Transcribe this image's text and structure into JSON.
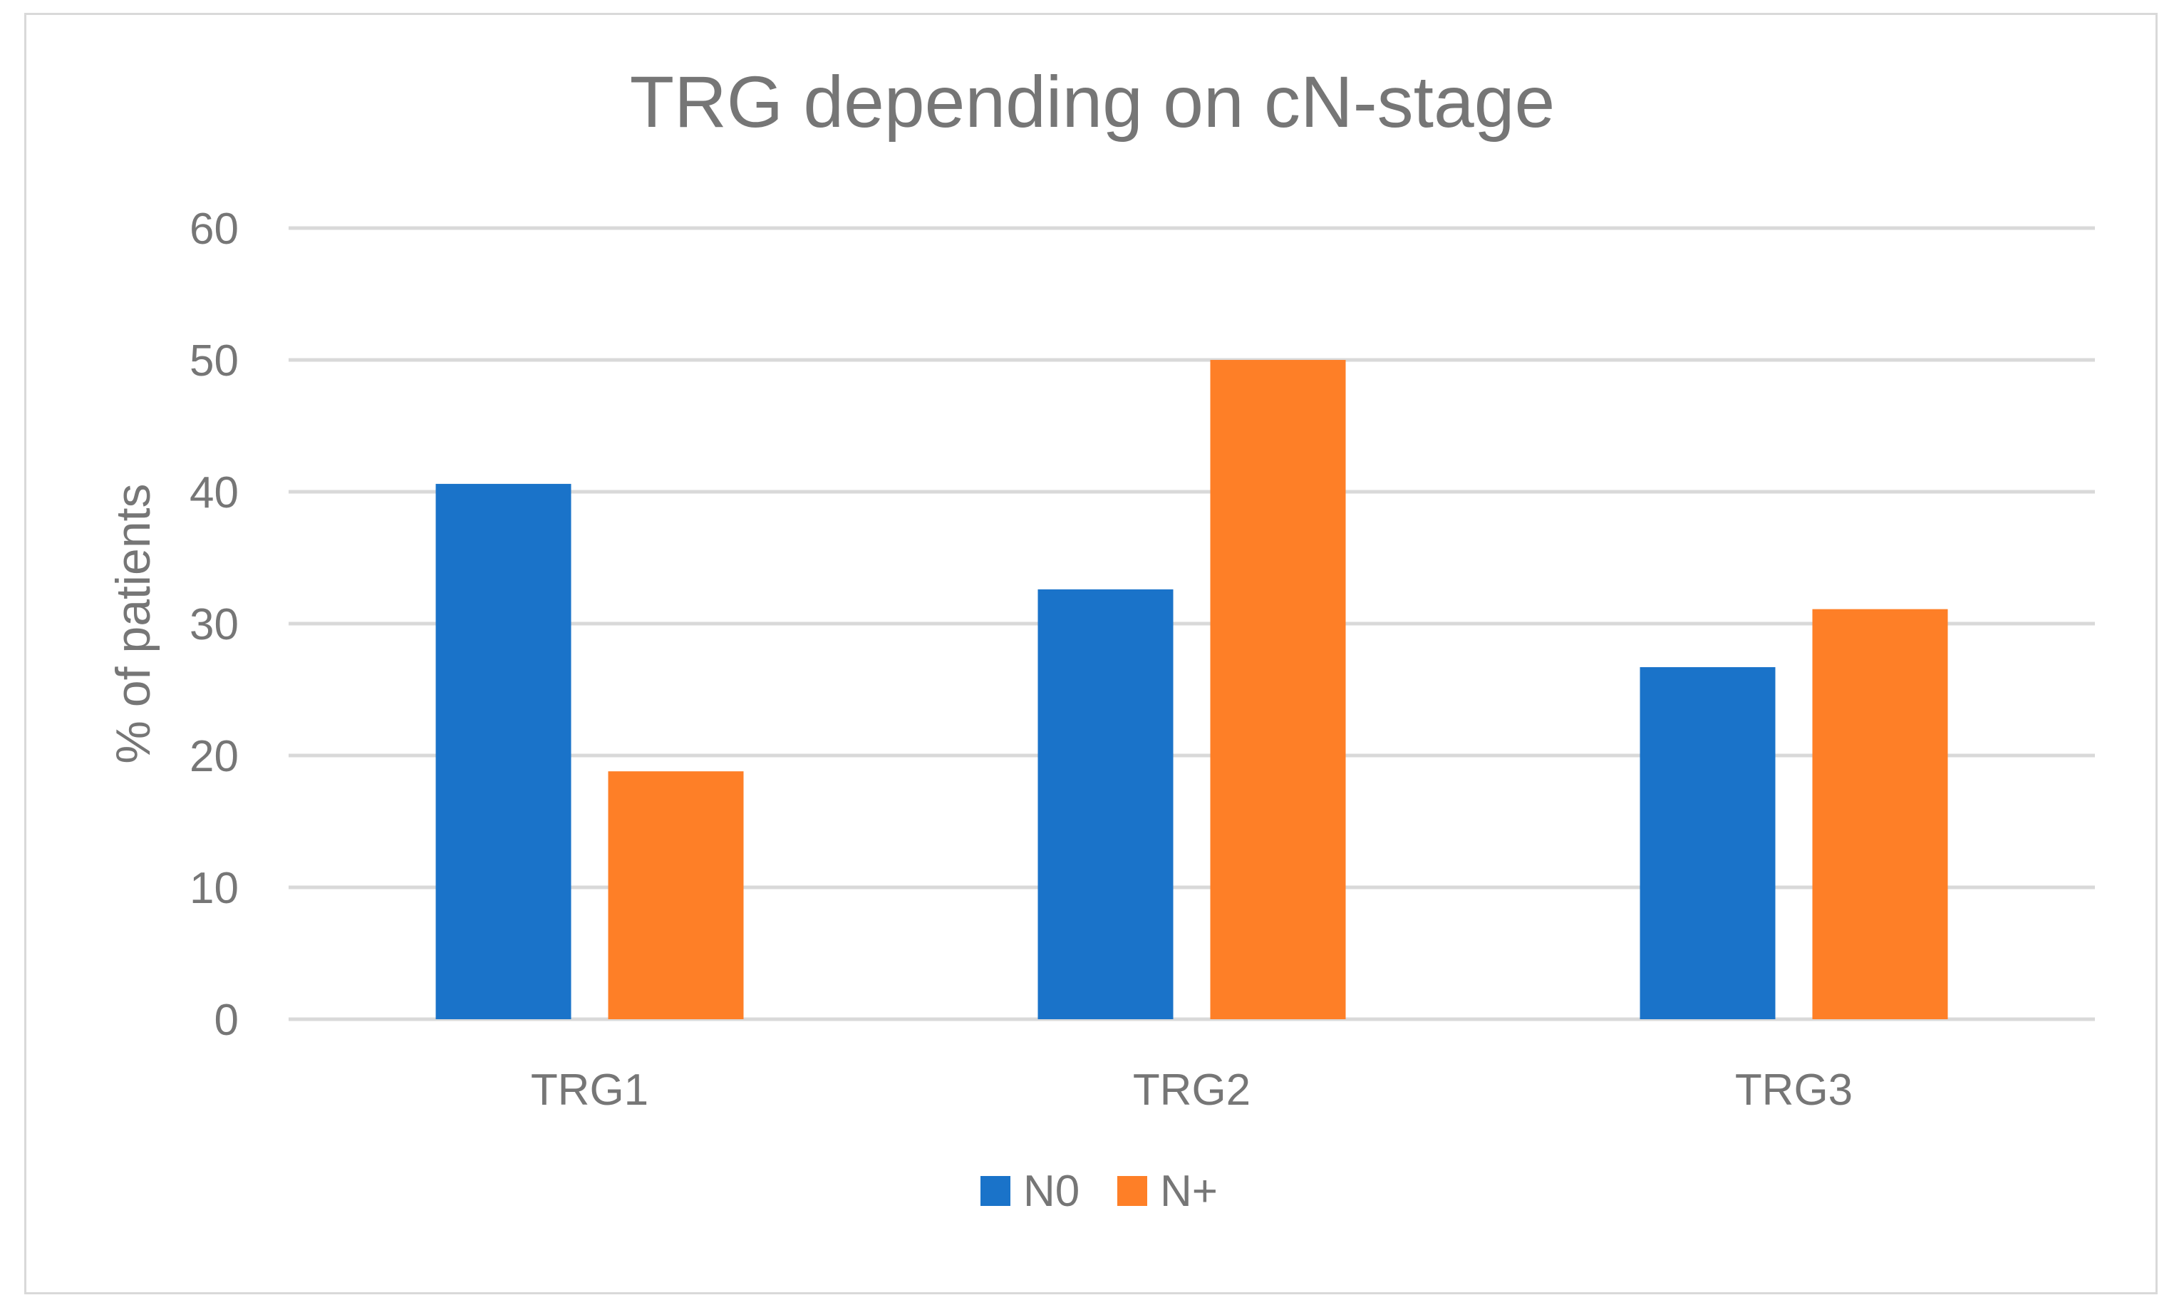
{
  "chart_data": {
    "type": "bar",
    "title": "TRG depending on cN-stage",
    "xlabel": "",
    "ylabel": "% of patients",
    "ylim": [
      0,
      60
    ],
    "yticks": [
      0,
      10,
      20,
      30,
      40,
      50,
      60
    ],
    "grid": true,
    "legend_position": "bottom",
    "categories": [
      "TRG1",
      "TRG2",
      "TRG3"
    ],
    "series": [
      {
        "name": "N0",
        "color": "#1a73c9",
        "values": [
          40.6,
          32.6,
          26.7
        ]
      },
      {
        "name": "N+",
        "color": "#fe7f27",
        "values": [
          18.8,
          50.0,
          31.1
        ]
      }
    ]
  }
}
